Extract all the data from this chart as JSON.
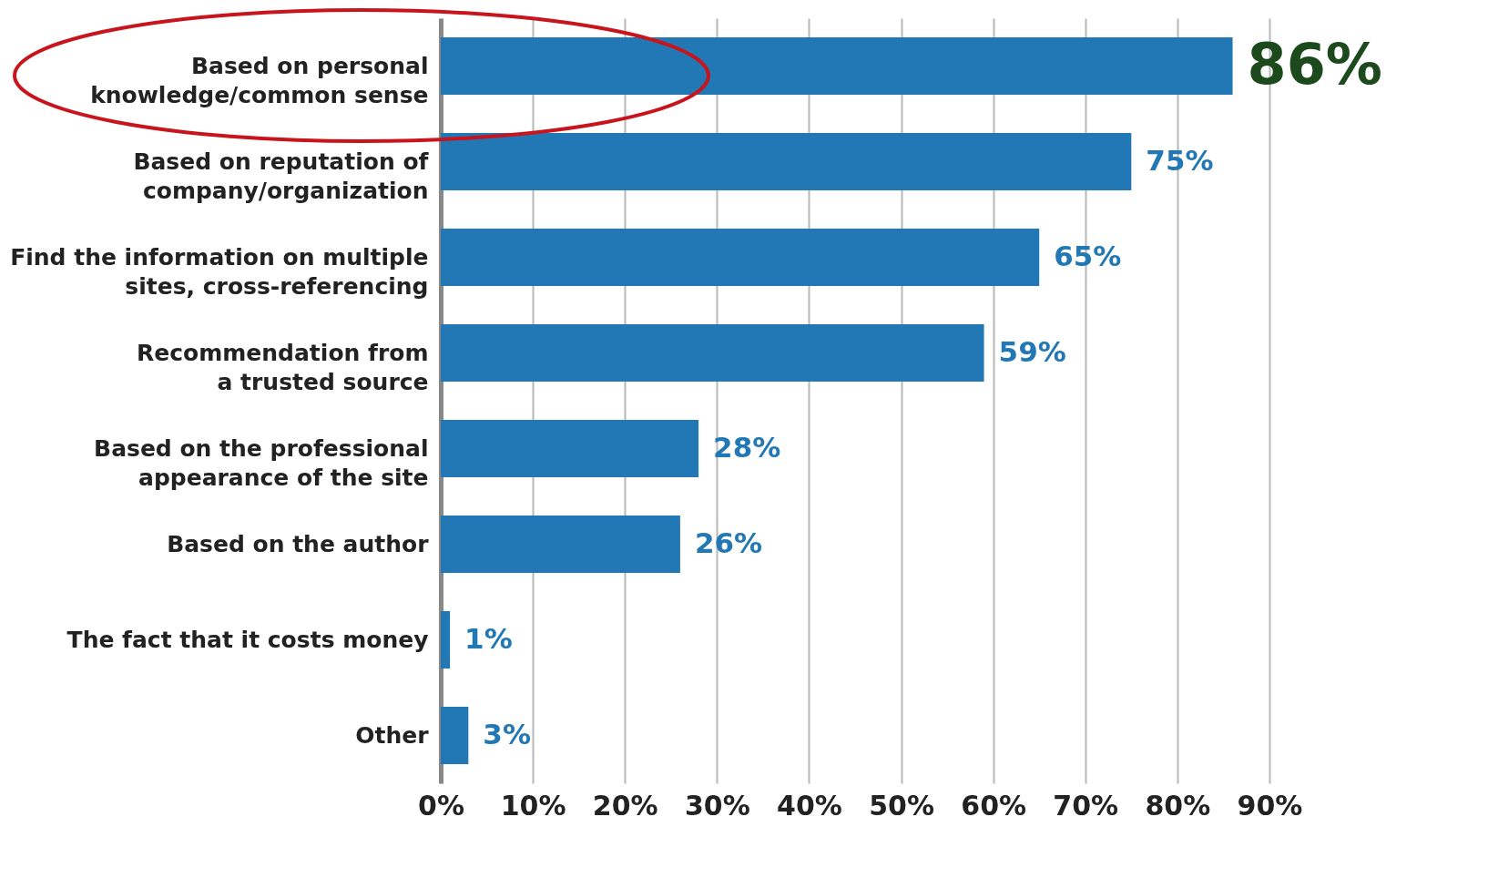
{
  "chart_data": {
    "type": "bar",
    "orientation": "horizontal",
    "categories": [
      "Based on personal knowledge/common sense",
      "Based on reputation of company/organization",
      "Find the information on multiple sites, cross-referencing",
      "Recommendation from a trusted source",
      "Based on the professional appearance of the site",
      "Based on the author",
      "The fact that it costs money",
      "Other"
    ],
    "values": [
      86,
      75,
      65,
      59,
      28,
      26,
      1,
      3
    ],
    "color": "#2278b5",
    "xlim": [
      0,
      90
    ],
    "xticks": [
      {
        "value": 0,
        "label": "0%"
      },
      {
        "value": 10,
        "label": "10%"
      },
      {
        "value": 20,
        "label": "20%"
      },
      {
        "value": 30,
        "label": "30%"
      },
      {
        "value": 40,
        "label": "40%"
      },
      {
        "value": 50,
        "label": "50%"
      },
      {
        "value": 60,
        "label": "60%"
      },
      {
        "value": 70,
        "label": "70%"
      },
      {
        "value": 80,
        "label": "80%"
      },
      {
        "value": 90,
        "label": "90%"
      }
    ],
    "grid": "x",
    "value_labels": [
      "86%",
      "75%",
      "65%",
      "59%",
      "28%",
      "26%",
      "1%",
      "3%"
    ]
  }
}
